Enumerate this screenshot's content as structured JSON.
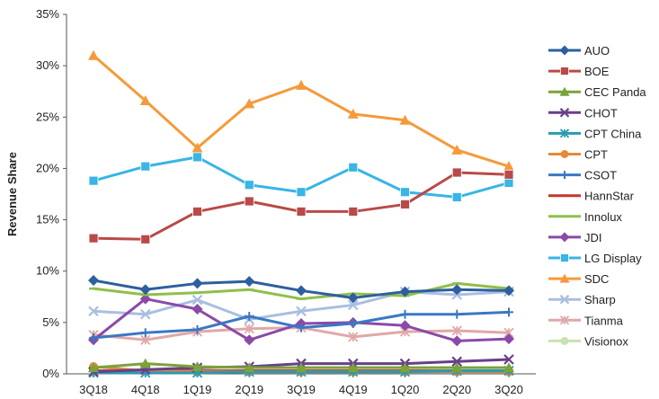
{
  "chart_data": {
    "type": "line",
    "title": "",
    "xlabel": "",
    "ylabel": "Revenue Share",
    "categories": [
      "3Q18",
      "4Q18",
      "1Q19",
      "2Q19",
      "3Q19",
      "4Q19",
      "1Q20",
      "2Q20",
      "3Q20"
    ],
    "ylim": [
      0,
      35
    ],
    "yticks": [
      "0%",
      "5%",
      "10%",
      "15%",
      "20%",
      "25%",
      "30%",
      "35%"
    ],
    "ytick_values": [
      0,
      5,
      10,
      15,
      20,
      25,
      30,
      35
    ],
    "grid": false,
    "legend_position": "right",
    "series": [
      {
        "name": "AUO",
        "color": "#2e5f9e",
        "marker": "diamond",
        "values": [
          9.1,
          8.2,
          8.8,
          9.0,
          8.1,
          7.4,
          8.0,
          8.2,
          8.1
        ]
      },
      {
        "name": "BOE",
        "color": "#b94a48",
        "marker": "square",
        "values": [
          13.2,
          13.1,
          15.8,
          16.8,
          15.8,
          15.8,
          16.5,
          19.6,
          19.4
        ]
      },
      {
        "name": "CEC Panda",
        "color": "#7aa33a",
        "marker": "triangle",
        "values": [
          0.6,
          1.0,
          0.7,
          0.6,
          0.6,
          0.6,
          0.6,
          0.6,
          0.6
        ]
      },
      {
        "name": "CHOT",
        "color": "#6a3f8a",
        "marker": "x",
        "values": [
          0.2,
          0.4,
          0.6,
          0.7,
          1.0,
          1.0,
          1.0,
          1.2,
          1.4
        ]
      },
      {
        "name": "CPT China",
        "color": "#2a9ab0",
        "marker": "asterisk",
        "values": [
          0.1,
          0.1,
          0.1,
          0.2,
          0.2,
          0.2,
          0.2,
          0.3,
          0.3
        ]
      },
      {
        "name": "CPT",
        "color": "#e6893a",
        "marker": "circle",
        "values": [
          0.7,
          0.3,
          0.2,
          0.2,
          0.2,
          0.2,
          0.2,
          0.2,
          0.2
        ]
      },
      {
        "name": "CSOT",
        "color": "#3a78c2",
        "marker": "plus",
        "values": [
          3.5,
          4.0,
          4.3,
          5.6,
          4.5,
          4.9,
          5.8,
          5.8,
          6.0
        ]
      },
      {
        "name": "HannStar",
        "color": "#c0392b",
        "marker": "dash",
        "values": [
          0.3,
          0.3,
          0.3,
          0.3,
          0.3,
          0.3,
          0.3,
          0.3,
          0.3
        ]
      },
      {
        "name": "Innolux",
        "color": "#8fbf4a",
        "marker": "dash",
        "values": [
          8.3,
          7.7,
          7.9,
          8.2,
          7.3,
          7.8,
          7.6,
          8.8,
          8.3
        ]
      },
      {
        "name": "JDI",
        "color": "#8a4aa8",
        "marker": "diamond",
        "values": [
          3.3,
          7.3,
          6.3,
          3.3,
          4.9,
          5.0,
          4.7,
          3.2,
          3.4
        ]
      },
      {
        "name": "LG Display",
        "color": "#39b5e6",
        "marker": "square",
        "values": [
          18.8,
          20.2,
          21.1,
          18.4,
          17.7,
          20.1,
          17.7,
          17.2,
          18.6
        ]
      },
      {
        "name": "SDC",
        "color": "#f59a3a",
        "marker": "triangle",
        "values": [
          31.0,
          26.6,
          22.0,
          26.3,
          28.1,
          25.3,
          24.7,
          21.8,
          20.2
        ]
      },
      {
        "name": "Sharp",
        "color": "#a9bfe0",
        "marker": "x",
        "values": [
          6.1,
          5.8,
          7.2,
          5.3,
          6.1,
          6.7,
          8.0,
          7.7,
          8.0
        ]
      },
      {
        "name": "Tianma",
        "color": "#e0a8a8",
        "marker": "asterisk",
        "values": [
          3.8,
          3.3,
          4.1,
          4.4,
          4.5,
          3.6,
          4.1,
          4.2,
          4.0
        ]
      },
      {
        "name": "Visionox",
        "color": "#c9e2b0",
        "marker": "circle",
        "values": [
          0.1,
          0.3,
          0.3,
          0.3,
          0.3,
          0.3,
          0.3,
          0.3,
          0.3
        ]
      }
    ]
  }
}
